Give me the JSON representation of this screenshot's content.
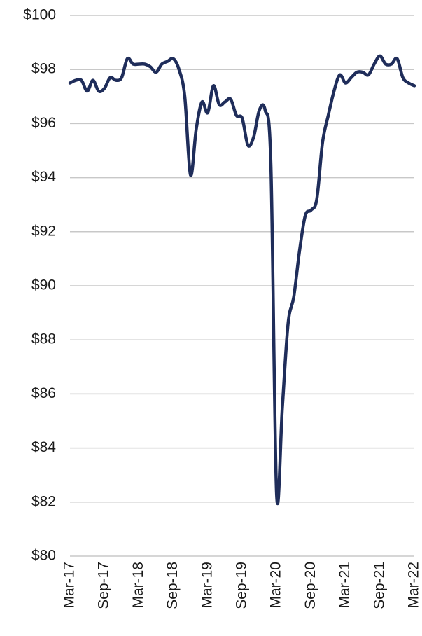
{
  "chart_data": {
    "type": "line",
    "categories": [
      "Mar-17",
      null,
      null,
      null,
      null,
      null,
      "Sep-17",
      null,
      null,
      null,
      null,
      null,
      "Mar-18",
      null,
      null,
      null,
      null,
      null,
      "Sep-18",
      null,
      null,
      null,
      null,
      null,
      "Mar-19",
      null,
      null,
      null,
      null,
      null,
      "Sep-19",
      null,
      null,
      null,
      null,
      null,
      "Mar-20",
      null,
      null,
      null,
      null,
      null,
      "Sep-20",
      null,
      null,
      null,
      null,
      null,
      "Mar-21",
      null,
      null,
      null,
      null,
      null,
      "Sep-21",
      null,
      null,
      null,
      null,
      null,
      "Mar-22"
    ],
    "values": [
      97.5,
      97.6,
      97.6,
      97.2,
      97.6,
      97.2,
      97.3,
      97.7,
      97.6,
      97.7,
      98.4,
      98.2,
      98.2,
      98.2,
      98.1,
      97.9,
      98.2,
      98.3,
      98.4,
      98.0,
      97.0,
      94.1,
      95.8,
      96.8,
      96.4,
      97.4,
      96.7,
      96.8,
      96.9,
      96.3,
      96.2,
      95.2,
      95.5,
      96.5,
      96.5,
      94.5,
      82.3,
      85.5,
      88.6,
      89.6,
      91.3,
      92.6,
      92.8,
      93.2,
      95.3,
      96.3,
      97.2,
      97.8,
      97.5,
      97.7,
      97.9,
      97.9,
      97.8,
      98.2,
      98.5,
      98.2,
      98.2,
      98.4,
      97.7,
      97.5,
      97.4
    ],
    "color": "#1f2d5a",
    "ylim": [
      80,
      100
    ],
    "yticks": [
      {
        "value": 80,
        "label": "$80"
      },
      {
        "value": 82,
        "label": "$82"
      },
      {
        "value": 84,
        "label": "$84"
      },
      {
        "value": 86,
        "label": "$86"
      },
      {
        "value": 88,
        "label": "$88"
      },
      {
        "value": 90,
        "label": "$90"
      },
      {
        "value": 92,
        "label": "$92"
      },
      {
        "value": 94,
        "label": "$94"
      },
      {
        "value": 96,
        "label": "$96"
      },
      {
        "value": 98,
        "label": "$98"
      },
      {
        "value": 100,
        "label": "$100"
      }
    ],
    "grid": true
  }
}
